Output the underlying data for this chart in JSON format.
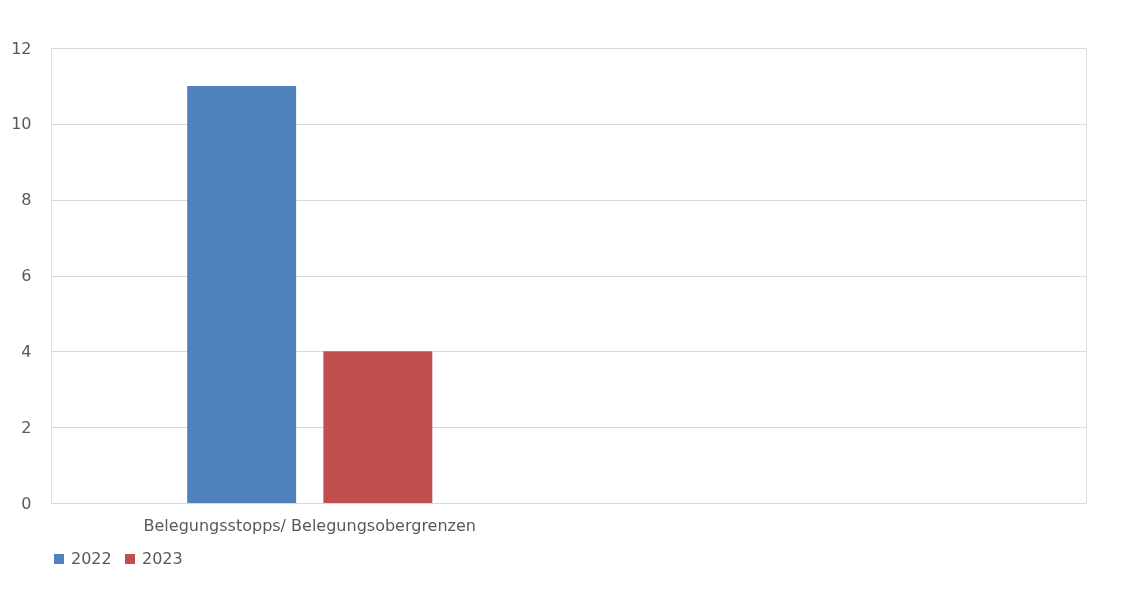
{
  "chart_data": {
    "type": "bar",
    "categories": [
      "Belegungsstopps/ Belegungsobergrenzen",
      null
    ],
    "series": [
      {
        "name": "2022",
        "color": "#4f81bd",
        "values": [
          11,
          null
        ]
      },
      {
        "name": "2023",
        "color": "#c0504d",
        "values": [
          4,
          null
        ]
      }
    ],
    "ylim": [
      0,
      12
    ],
    "yticks": [
      0,
      2,
      4,
      6,
      8,
      10,
      12
    ],
    "grid": "y",
    "legend": "bottom"
  }
}
